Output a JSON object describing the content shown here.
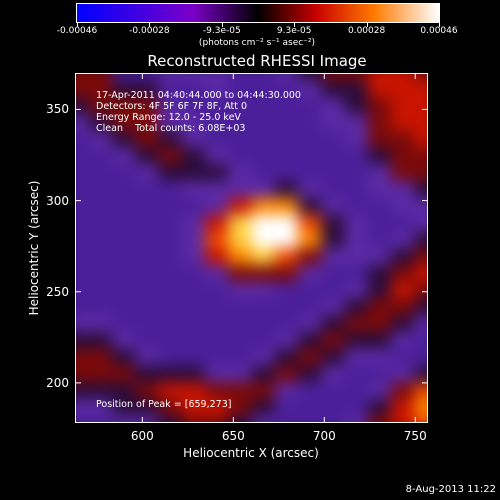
{
  "colorbar": {
    "tick_labels": [
      "-0.00046",
      "-0.00028",
      "-9.3e-05",
      "9.3e-05",
      "0.00028",
      "0.00046"
    ],
    "units": "(photons cm⁻² s⁻¹ asec⁻²)",
    "range": [
      -0.00046,
      0.00046
    ]
  },
  "footer": {
    "date": "8-Aug-2013 11:22"
  },
  "chart_data": {
    "type": "heatmap",
    "title": "Reconstructed RHESSI Image",
    "xlabel": "Heliocentric X (arcsec)",
    "ylabel": "Heliocentric Y (arcsec)",
    "xlim": [
      563,
      757
    ],
    "ylim": [
      178,
      370
    ],
    "x_ticks": [
      600,
      650,
      700,
      750
    ],
    "y_ticks": [
      200,
      250,
      300,
      350
    ],
    "annotations": {
      "line1": "17-Apr-2011 04:40:44.000 to 04:44:30.000",
      "line2": "Detectors: 4F 5F 6F 7F 8F, Att 0",
      "line3": "Energy Range: 12.0 - 25.0 keV",
      "line4": "Clean    Total counts: 6.08E+03",
      "peak": "Position of Peak = [659,273]"
    },
    "peak": [
      659,
      273
    ],
    "colormap": "red-temperature",
    "grid_rows": [
      "4411222112344554",
      "4433112111233555",
      "3444211111123455",
      "2344221111122455",
      "1234321111112445",
      "1123432111111344",
      "1112333211111244",
      "1111122223211223",
      "1111112577321122",
      "1111125899632112",
      "1111126899732123",
      "1111125786422234",
      "1111112444211345",
      "1111111221112354",
      "1111111111123443",
      "2211111111234432",
      "3321111112343321",
      "4432111123432211",
      "4443332234321123",
      "3334554442111246",
      "2233455431111357",
      "1122344321112456"
    ],
    "value_scale": "grid digits 1-9 map the colorbar from low (purple) to high (white)"
  }
}
